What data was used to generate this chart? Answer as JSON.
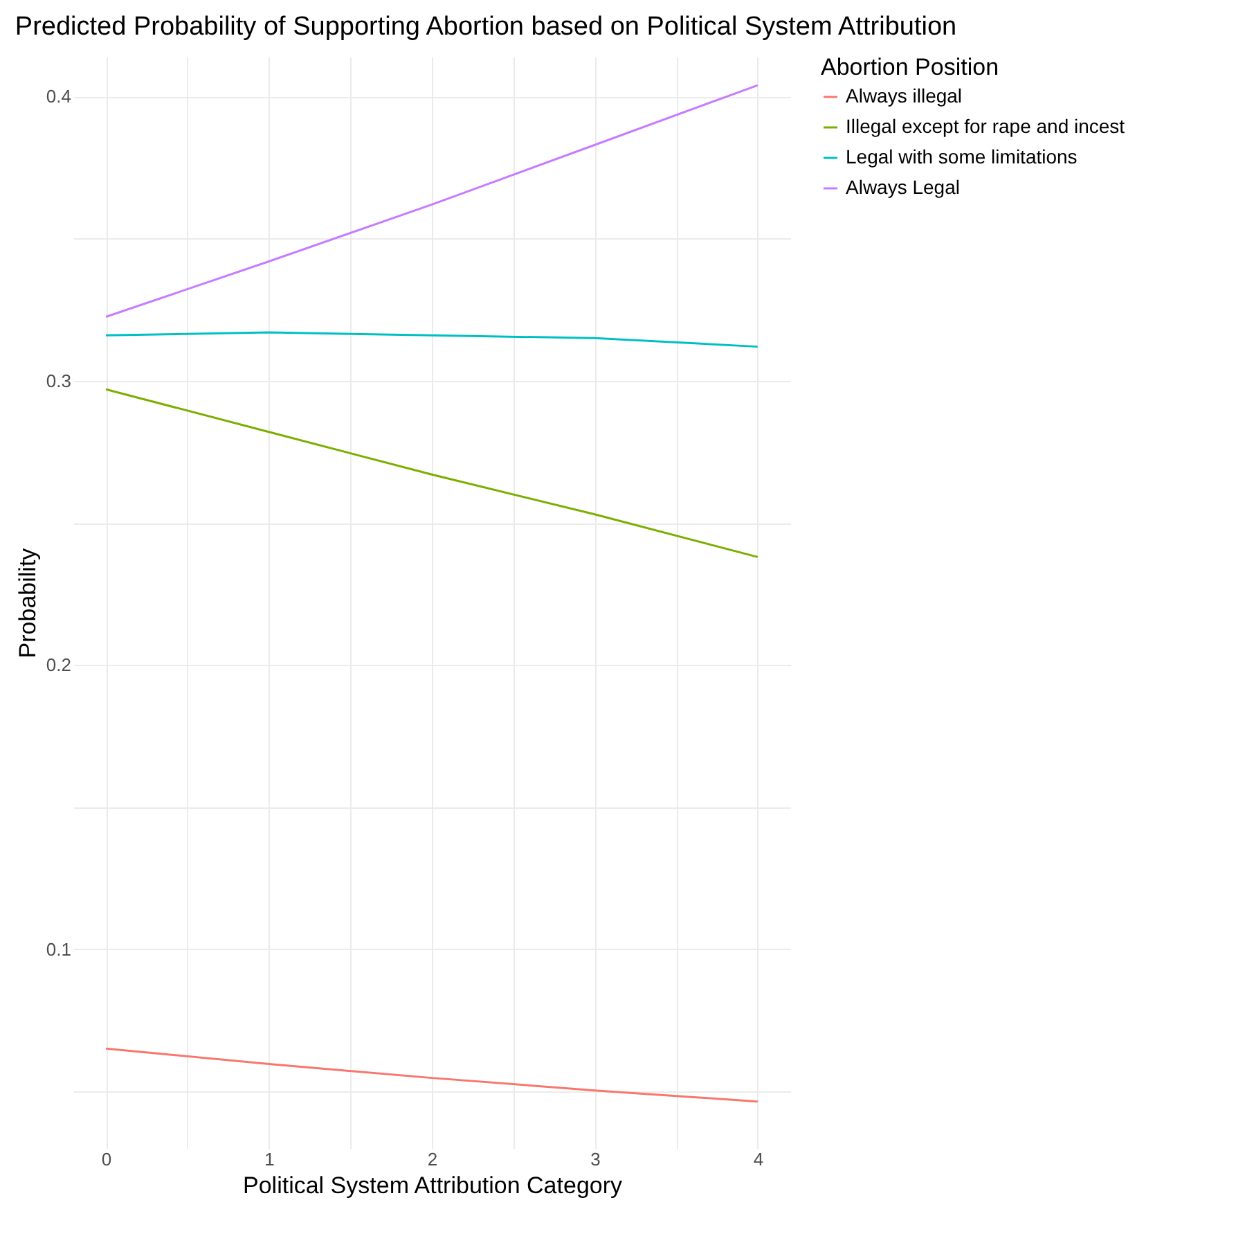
{
  "chart_data": {
    "type": "line",
    "title": "Predicted Probability of Supporting Abortion based on Political System Attribution",
    "xlabel": "Political System Attribution Category",
    "ylabel": "Probability",
    "legend_title": "Abortion Position",
    "x": [
      0,
      1,
      2,
      3,
      4
    ],
    "series": [
      {
        "name": "Always illegal",
        "color": "#f8766d",
        "values": [
          0.065,
          0.0596,
          0.0547,
          0.0503,
          0.0464
        ]
      },
      {
        "name": "Illegal except for rape and incest",
        "color": "#7cae00",
        "values": [
          0.297,
          0.282,
          0.267,
          0.253,
          0.238
        ]
      },
      {
        "name": "Legal with some limitations",
        "color": "#00bfc4",
        "values": [
          0.316,
          0.317,
          0.316,
          0.315,
          0.312
        ]
      },
      {
        "name": "Always Legal",
        "color": "#c77cff",
        "values": [
          0.3225,
          0.342,
          0.362,
          0.383,
          0.404
        ]
      }
    ],
    "xlim": [
      -0.2,
      4.2
    ],
    "xticks": [
      {
        "value": 0.5,
        "label": null
      },
      {
        "value": 1.5,
        "label": null
      },
      {
        "value": 2.5,
        "label": null
      },
      {
        "value": 3.5,
        "label": null
      },
      0,
      1,
      2,
      3,
      4
    ],
    "ylim": [
      0.03,
      0.414
    ],
    "yticks": [
      {
        "value": 0.05,
        "label": null
      },
      {
        "value": 0.15,
        "label": null
      },
      {
        "value": 0.25,
        "label": null
      },
      {
        "value": 0.35,
        "label": null
      },
      0.1,
      0.2,
      0.3,
      0.4
    ],
    "grid": true,
    "legend": "right",
    "line_style": "solid",
    "marker": "none"
  }
}
